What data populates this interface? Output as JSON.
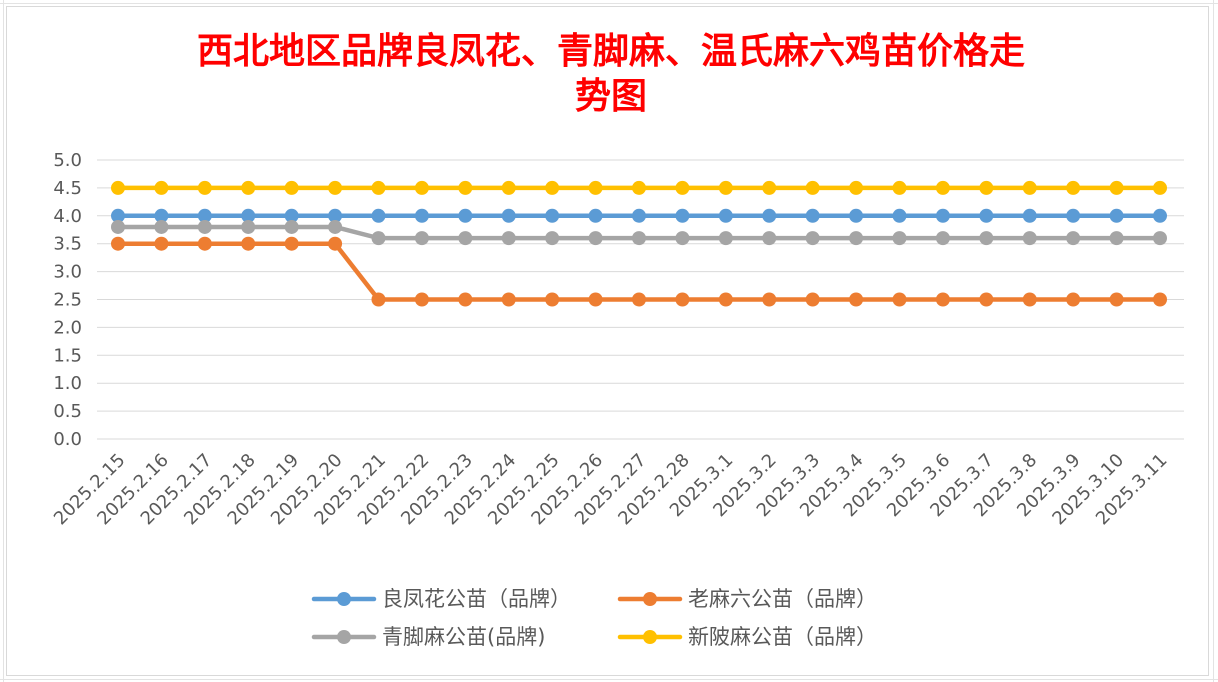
{
  "chart_data": {
    "type": "line",
    "title_lines": [
      "西北地区品牌良凤花、青脚麻、温氏麻六鸡苗价格走",
      "势图"
    ],
    "xlabel": "",
    "ylabel": "",
    "categories": [
      "2025.2.15",
      "2025.2.16",
      "2025.2.17",
      "2025.2.18",
      "2025.2.19",
      "2025.2.20",
      "2025.2.21",
      "2025.2.22",
      "2025.2.23",
      "2025.2.24",
      "2025.2.25",
      "2025.2.26",
      "2025.2.27",
      "2025.2.28",
      "2025.3.1",
      "2025.3.2",
      "2025.3.3",
      "2025.3.4",
      "2025.3.5",
      "2025.3.6",
      "2025.3.7",
      "2025.3.8",
      "2025.3.9",
      "2025.3.10",
      "2025.3.11"
    ],
    "ylim": [
      0,
      5
    ],
    "yticks": [
      "0.0",
      "0.5",
      "1.0",
      "1.5",
      "2.0",
      "2.5",
      "3.0",
      "3.5",
      "4.0",
      "4.5",
      "5.0"
    ],
    "grid": true,
    "legend_position": "bottom",
    "series": [
      {
        "name": "良凤花公苗（品牌）",
        "color": "#5b9bd5",
        "values": [
          4.0,
          4.0,
          4.0,
          4.0,
          4.0,
          4.0,
          4.0,
          4.0,
          4.0,
          4.0,
          4.0,
          4.0,
          4.0,
          4.0,
          4.0,
          4.0,
          4.0,
          4.0,
          4.0,
          4.0,
          4.0,
          4.0,
          4.0,
          4.0,
          4.0
        ]
      },
      {
        "name": "老麻六公苗（品牌）",
        "color": "#ed7d31",
        "values": [
          3.5,
          3.5,
          3.5,
          3.5,
          3.5,
          3.5,
          2.5,
          2.5,
          2.5,
          2.5,
          2.5,
          2.5,
          2.5,
          2.5,
          2.5,
          2.5,
          2.5,
          2.5,
          2.5,
          2.5,
          2.5,
          2.5,
          2.5,
          2.5,
          2.5
        ]
      },
      {
        "name": "青脚麻公苗(品牌)",
        "color": "#a5a5a5",
        "values": [
          3.8,
          3.8,
          3.8,
          3.8,
          3.8,
          3.8,
          3.6,
          3.6,
          3.6,
          3.6,
          3.6,
          3.6,
          3.6,
          3.6,
          3.6,
          3.6,
          3.6,
          3.6,
          3.6,
          3.6,
          3.6,
          3.6,
          3.6,
          3.6,
          3.6
        ]
      },
      {
        "name": "新陂麻公苗（品牌）",
        "color": "#ffc000",
        "values": [
          4.5,
          4.5,
          4.5,
          4.5,
          4.5,
          4.5,
          4.5,
          4.5,
          4.5,
          4.5,
          4.5,
          4.5,
          4.5,
          4.5,
          4.5,
          4.5,
          4.5,
          4.5,
          4.5,
          4.5,
          4.5,
          4.5,
          4.5,
          4.5,
          4.5
        ]
      }
    ],
    "colors": {
      "title": "#ff0000",
      "gridline": "#d9d9d9",
      "tick_text": "#595959"
    }
  }
}
